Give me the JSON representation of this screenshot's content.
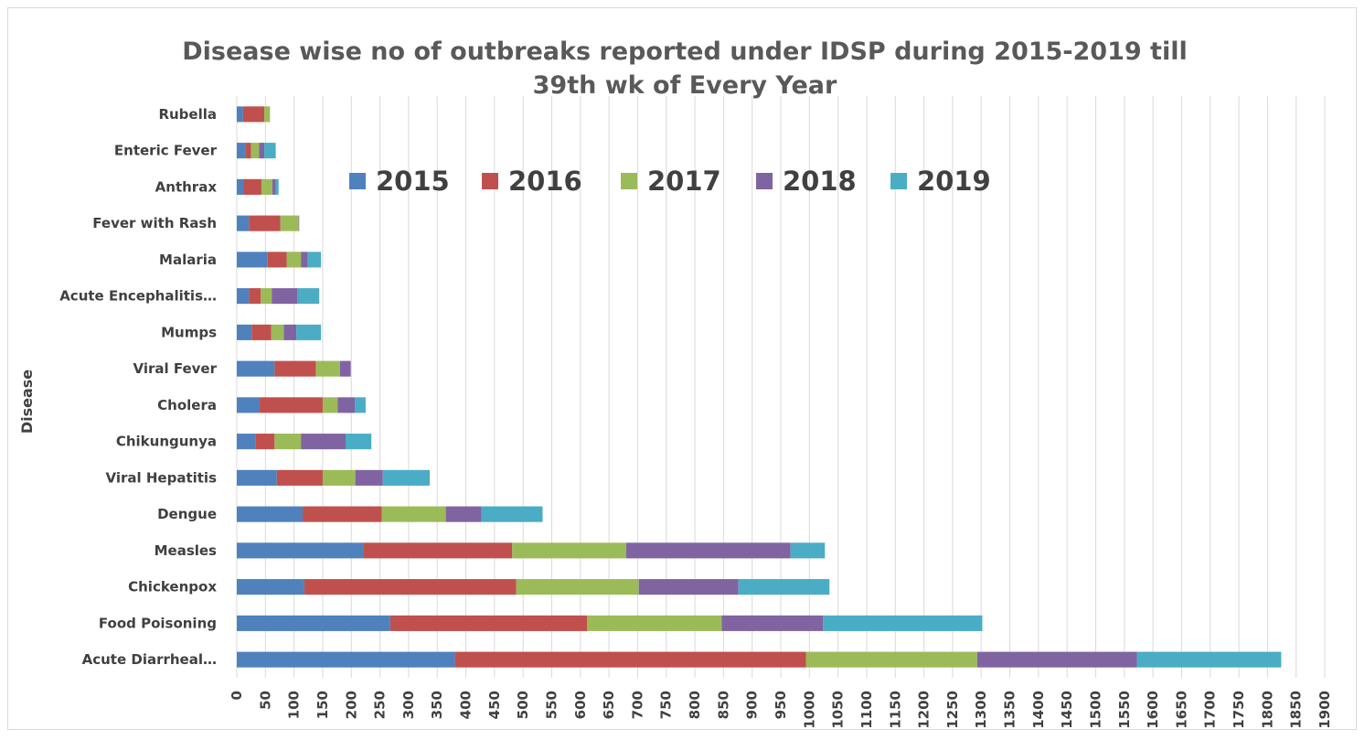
{
  "chart_data": {
    "type": "bar",
    "orientation": "horizontal",
    "stacked": true,
    "title_line1": "Disease wise no of outbreaks reported under IDSP during 2015-2019 till",
    "title_line2": "39th wk of Every Year",
    "ylabel": "Disease",
    "xlabel": "",
    "xlim": [
      0,
      1900
    ],
    "x_ticks": [
      "0",
      "50",
      "100",
      "150",
      "200",
      "250",
      "300",
      "350",
      "400",
      "450",
      "500",
      "550",
      "600",
      "650",
      "700",
      "750",
      "800",
      "850",
      "900",
      "950",
      "1000",
      "1050",
      "1100",
      "1150",
      "1200",
      "1250",
      "1300",
      "1350",
      "1400",
      "1450",
      "1500",
      "1550",
      "1600",
      "1650",
      "1700",
      "1750",
      "1800",
      "1850",
      "1900"
    ],
    "grid": "vertical",
    "legend_position": "top-center",
    "categories": [
      "Rubella",
      "Enteric Fever",
      "Anthrax",
      "Fever with Rash",
      "Malaria",
      "Acute Encephalitis…",
      "Mumps",
      "Viral Fever",
      "Cholera",
      "Chikungunya",
      "Viral Hepatitis",
      "Dengue",
      "Measles",
      "Chickenpox",
      "Food Poisoning",
      "Acute Diarrheal…"
    ],
    "series": [
      {
        "name": "2015",
        "color": "#4f81bd",
        "values": [
          11,
          15,
          12,
          21,
          54,
          21,
          26,
          66,
          40,
          33,
          70,
          115,
          221,
          118,
          268,
          381
        ]
      },
      {
        "name": "2016",
        "color": "#c0504d",
        "values": [
          37,
          10,
          31,
          55,
          33,
          21,
          34,
          72,
          110,
          33,
          80,
          138,
          260,
          370,
          344,
          613
        ]
      },
      {
        "name": "2017",
        "color": "#9bbb59",
        "values": [
          10,
          14,
          19,
          32,
          25,
          19,
          22,
          42,
          26,
          46,
          57,
          112,
          199,
          214,
          235,
          299
        ]
      },
      {
        "name": "2018",
        "color": "#8064a2",
        "values": [
          0,
          9,
          6,
          1,
          12,
          45,
          22,
          19,
          30,
          78,
          48,
          62,
          287,
          174,
          177,
          279
        ]
      },
      {
        "name": "2019",
        "color": "#4bacc6",
        "values": [
          0,
          20,
          5,
          0,
          23,
          38,
          43,
          0,
          19,
          45,
          82,
          107,
          60,
          159,
          278,
          252
        ]
      }
    ]
  }
}
